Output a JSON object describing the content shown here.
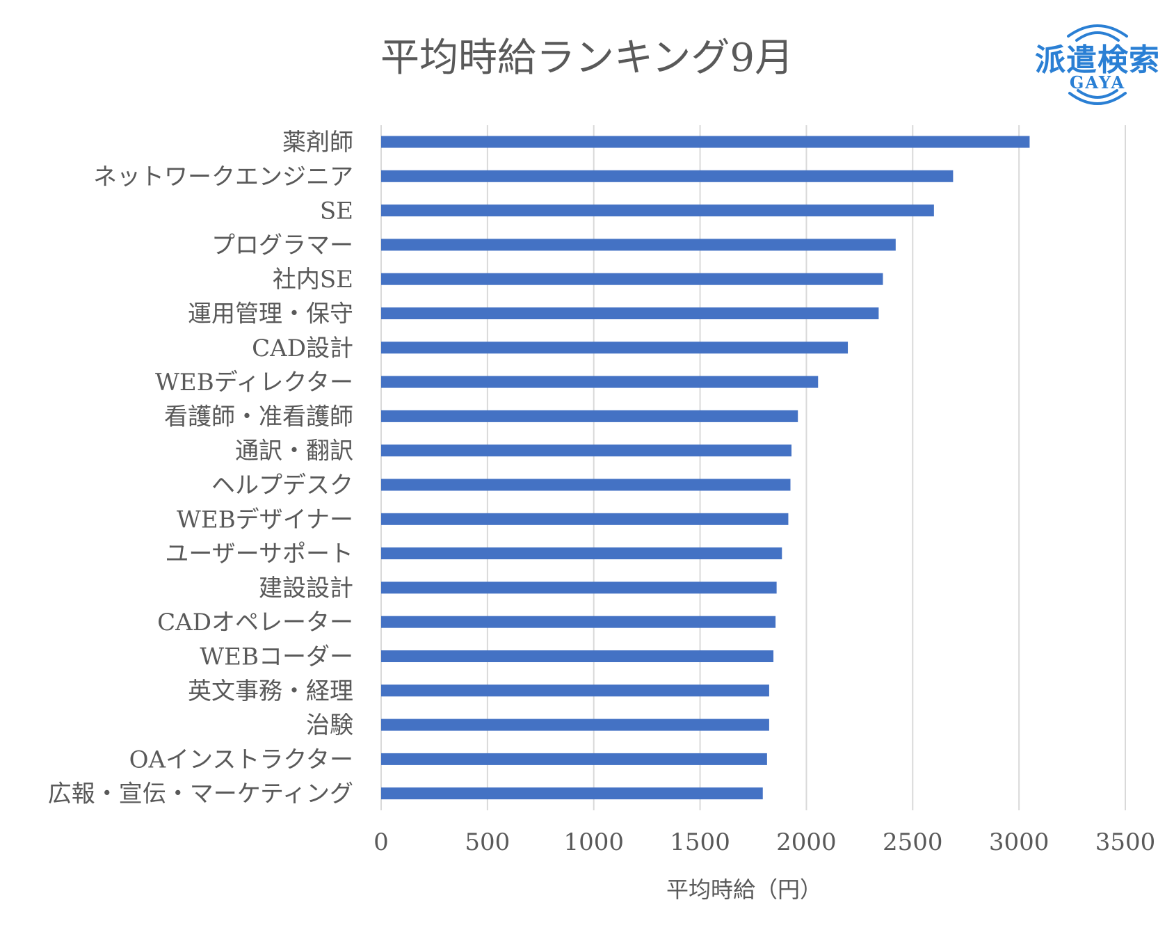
{
  "chart_data": {
    "type": "bar",
    "orientation": "horizontal",
    "title": "平均時給ランキング9月",
    "xlabel": "平均時給（円）",
    "ylabel": "",
    "xlim": [
      0,
      3500
    ],
    "xticks": [
      0,
      500,
      1000,
      1500,
      2000,
      2500,
      3000,
      3500
    ],
    "grid": true,
    "legend": "none",
    "bar_color": "#4472c4",
    "categories": [
      "薬剤師",
      "ネットワークエンジニア",
      "SE",
      "プログラマー",
      "社内SE",
      "運用管理・保守",
      "CAD設計",
      "WEBディレクター",
      "看護師・准看護師",
      "通訳・翻訳",
      "ヘルプデスク",
      "WEBデザイナー",
      "ユーザーサポート",
      "建設設計",
      "CADオペレーター",
      "WEBコーダー",
      "英文事務・経理",
      "治験",
      "OAインストラクター",
      "広報・宣伝・マーケティング"
    ],
    "values": [
      3050,
      2690,
      2600,
      2420,
      2360,
      2340,
      2195,
      2055,
      1960,
      1930,
      1925,
      1915,
      1885,
      1860,
      1855,
      1845,
      1825,
      1825,
      1815,
      1795
    ]
  },
  "logo": {
    "main": "派遣検索",
    "sub": "GAYA",
    "color": "#2a7fd4"
  }
}
